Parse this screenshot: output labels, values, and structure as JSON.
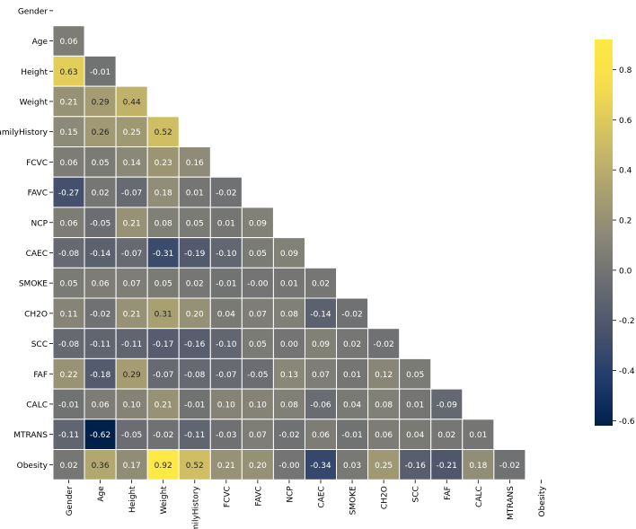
{
  "chart_data": {
    "type": "heatmap",
    "title": "",
    "xlabel": "",
    "ylabel": "",
    "labels": [
      "Gender",
      "Age",
      "Height",
      "Weight",
      "FamilyHistory",
      "FCVC",
      "FAVC",
      "NCP",
      "CAEC",
      "SMOKE",
      "CH2O",
      "SCC",
      "FAF",
      "CALC",
      "MTRANS",
      "Obesity"
    ],
    "mask": "upper-triangle-including-diagonal",
    "matrix": [
      [],
      [
        "0.06"
      ],
      [
        "0.63",
        "-0.01"
      ],
      [
        "0.21",
        "0.29",
        "0.44"
      ],
      [
        "0.15",
        "0.26",
        "0.25",
        "0.52"
      ],
      [
        "0.06",
        "0.05",
        "0.14",
        "0.23",
        "0.16"
      ],
      [
        "-0.27",
        "0.02",
        "-0.07",
        "0.18",
        "0.01",
        "-0.02"
      ],
      [
        "0.06",
        "-0.05",
        "0.21",
        "0.08",
        "0.05",
        "0.01",
        "0.09"
      ],
      [
        "-0.08",
        "-0.14",
        "-0.07",
        "-0.31",
        "-0.19",
        "-0.10",
        "0.05",
        "0.09"
      ],
      [
        "0.05",
        "0.06",
        "0.07",
        "0.05",
        "0.02",
        "-0.01",
        "-0.00",
        "0.01",
        "0.02"
      ],
      [
        "0.11",
        "-0.02",
        "0.21",
        "0.31",
        "0.20",
        "0.04",
        "0.07",
        "0.08",
        "-0.14",
        "-0.02"
      ],
      [
        "-0.08",
        "-0.11",
        "-0.11",
        "-0.17",
        "-0.16",
        "-0.10",
        "0.05",
        "0.00",
        "0.09",
        "0.02",
        "-0.02"
      ],
      [
        "0.22",
        "-0.18",
        "0.29",
        "-0.07",
        "-0.08",
        "-0.07",
        "-0.05",
        "0.13",
        "0.07",
        "0.01",
        "0.12",
        "0.05"
      ],
      [
        "-0.01",
        "0.06",
        "0.10",
        "0.21",
        "-0.01",
        "0.10",
        "0.10",
        "0.08",
        "-0.06",
        "0.04",
        "0.08",
        "0.01",
        "-0.09"
      ],
      [
        "-0.11",
        "-0.62",
        "-0.05",
        "-0.02",
        "-0.11",
        "-0.03",
        "0.07",
        "-0.02",
        "0.06",
        "-0.01",
        "0.06",
        "0.04",
        "0.02",
        "0.01"
      ],
      [
        "0.02",
        "0.36",
        "0.17",
        "0.92",
        "0.52",
        "0.21",
        "0.20",
        "-0.00",
        "-0.34",
        "0.03",
        "0.25",
        "-0.16",
        "-0.21",
        "0.18",
        "-0.02"
      ]
    ],
    "colormap": "cividis",
    "colorbar": {
      "vmin": -0.62,
      "vmax": 0.92,
      "ticks": [
        "0.8",
        "0.6",
        "0.4",
        "0.2",
        "0.0",
        "-0.2",
        "-0.4",
        "-0.6"
      ]
    },
    "cell_border_color": "#ffffff"
  }
}
